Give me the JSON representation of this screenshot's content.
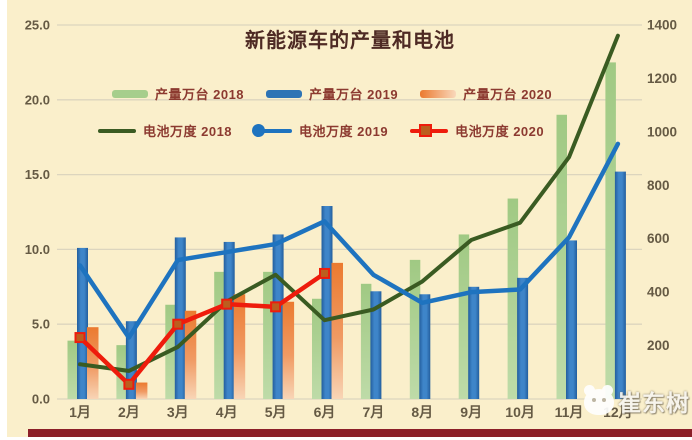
{
  "title": "新能源车的产量和电池",
  "watermark": {
    "text": "崔东树"
  },
  "colors": {
    "background": "#FAEFCB",
    "title_text": "#4E2A24",
    "legend_text": "#8C3A30",
    "axis_text": "#655A44",
    "gridline": "#DCD5BE",
    "bottom_bar": "#8C1F28"
  },
  "chart_data": {
    "type": "bar",
    "subtype": "combo bar+line, dual axis",
    "title": "新能源车的产量和电池",
    "categories": [
      "1月",
      "2月",
      "3月",
      "4月",
      "5月",
      "6月",
      "7月",
      "8月",
      "9月",
      "10月",
      "11月",
      "12月"
    ],
    "left_axis": {
      "min": 0,
      "max": 25,
      "ticks": [
        0,
        5,
        10,
        15,
        20,
        25
      ],
      "tick_labels": [
        "0.0",
        "5.0",
        "10.0",
        "15.0",
        "20.0",
        "25.0"
      ],
      "used_by": "产量万台 bars"
    },
    "right_axis": {
      "min": 0,
      "max": 1400,
      "ticks": [
        200,
        400,
        600,
        800,
        1000,
        1200,
        1400
      ],
      "tick_labels": [
        "200",
        "400",
        "600",
        "800",
        "1000",
        "1200",
        "1400"
      ],
      "used_by": "电池万度 lines"
    },
    "grid": "horizontal only",
    "legend_position": "top, two rows",
    "bar_series": [
      {
        "name": "产量万台 2018",
        "color": "#A6CE8C",
        "gradient": false,
        "values": [
          3.9,
          3.6,
          6.3,
          8.5,
          8.5,
          6.7,
          7.7,
          9.3,
          11.0,
          13.4,
          19.0,
          22.5
        ]
      },
      {
        "name": "产量万台 2019",
        "color": "#2E74B5",
        "gradient": false,
        "values": [
          10.1,
          5.2,
          10.8,
          10.5,
          11.0,
          12.9,
          7.2,
          7.0,
          7.5,
          8.1,
          10.6,
          15.2
        ]
      },
      {
        "name": "产量万台 2020",
        "color": "#EC7D33",
        "gradient": true,
        "values": [
          4.8,
          1.1,
          5.9,
          7.0,
          6.5,
          9.1,
          null,
          null,
          null,
          null,
          null,
          null
        ]
      }
    ],
    "line_series": [
      {
        "name": "电池万度 2018",
        "color": "#3A5B22",
        "marker": "none",
        "values": [
          130,
          105,
          195,
          365,
          465,
          295,
          335,
          440,
          595,
          660,
          905,
          1360
        ]
      },
      {
        "name": "电池万度 2019",
        "color": "#1E73BF",
        "marker": "circle",
        "values": [
          500,
          230,
          520,
          550,
          580,
          665,
          465,
          360,
          400,
          410,
          605,
          955
        ]
      },
      {
        "name": "电池万度 2020",
        "color": "#EE1C0C",
        "marker": "square",
        "marker_fill": "#BC5E1E",
        "values": [
          230,
          55,
          280,
          355,
          345,
          470,
          null,
          null,
          null,
          null,
          null,
          null
        ]
      }
    ]
  }
}
